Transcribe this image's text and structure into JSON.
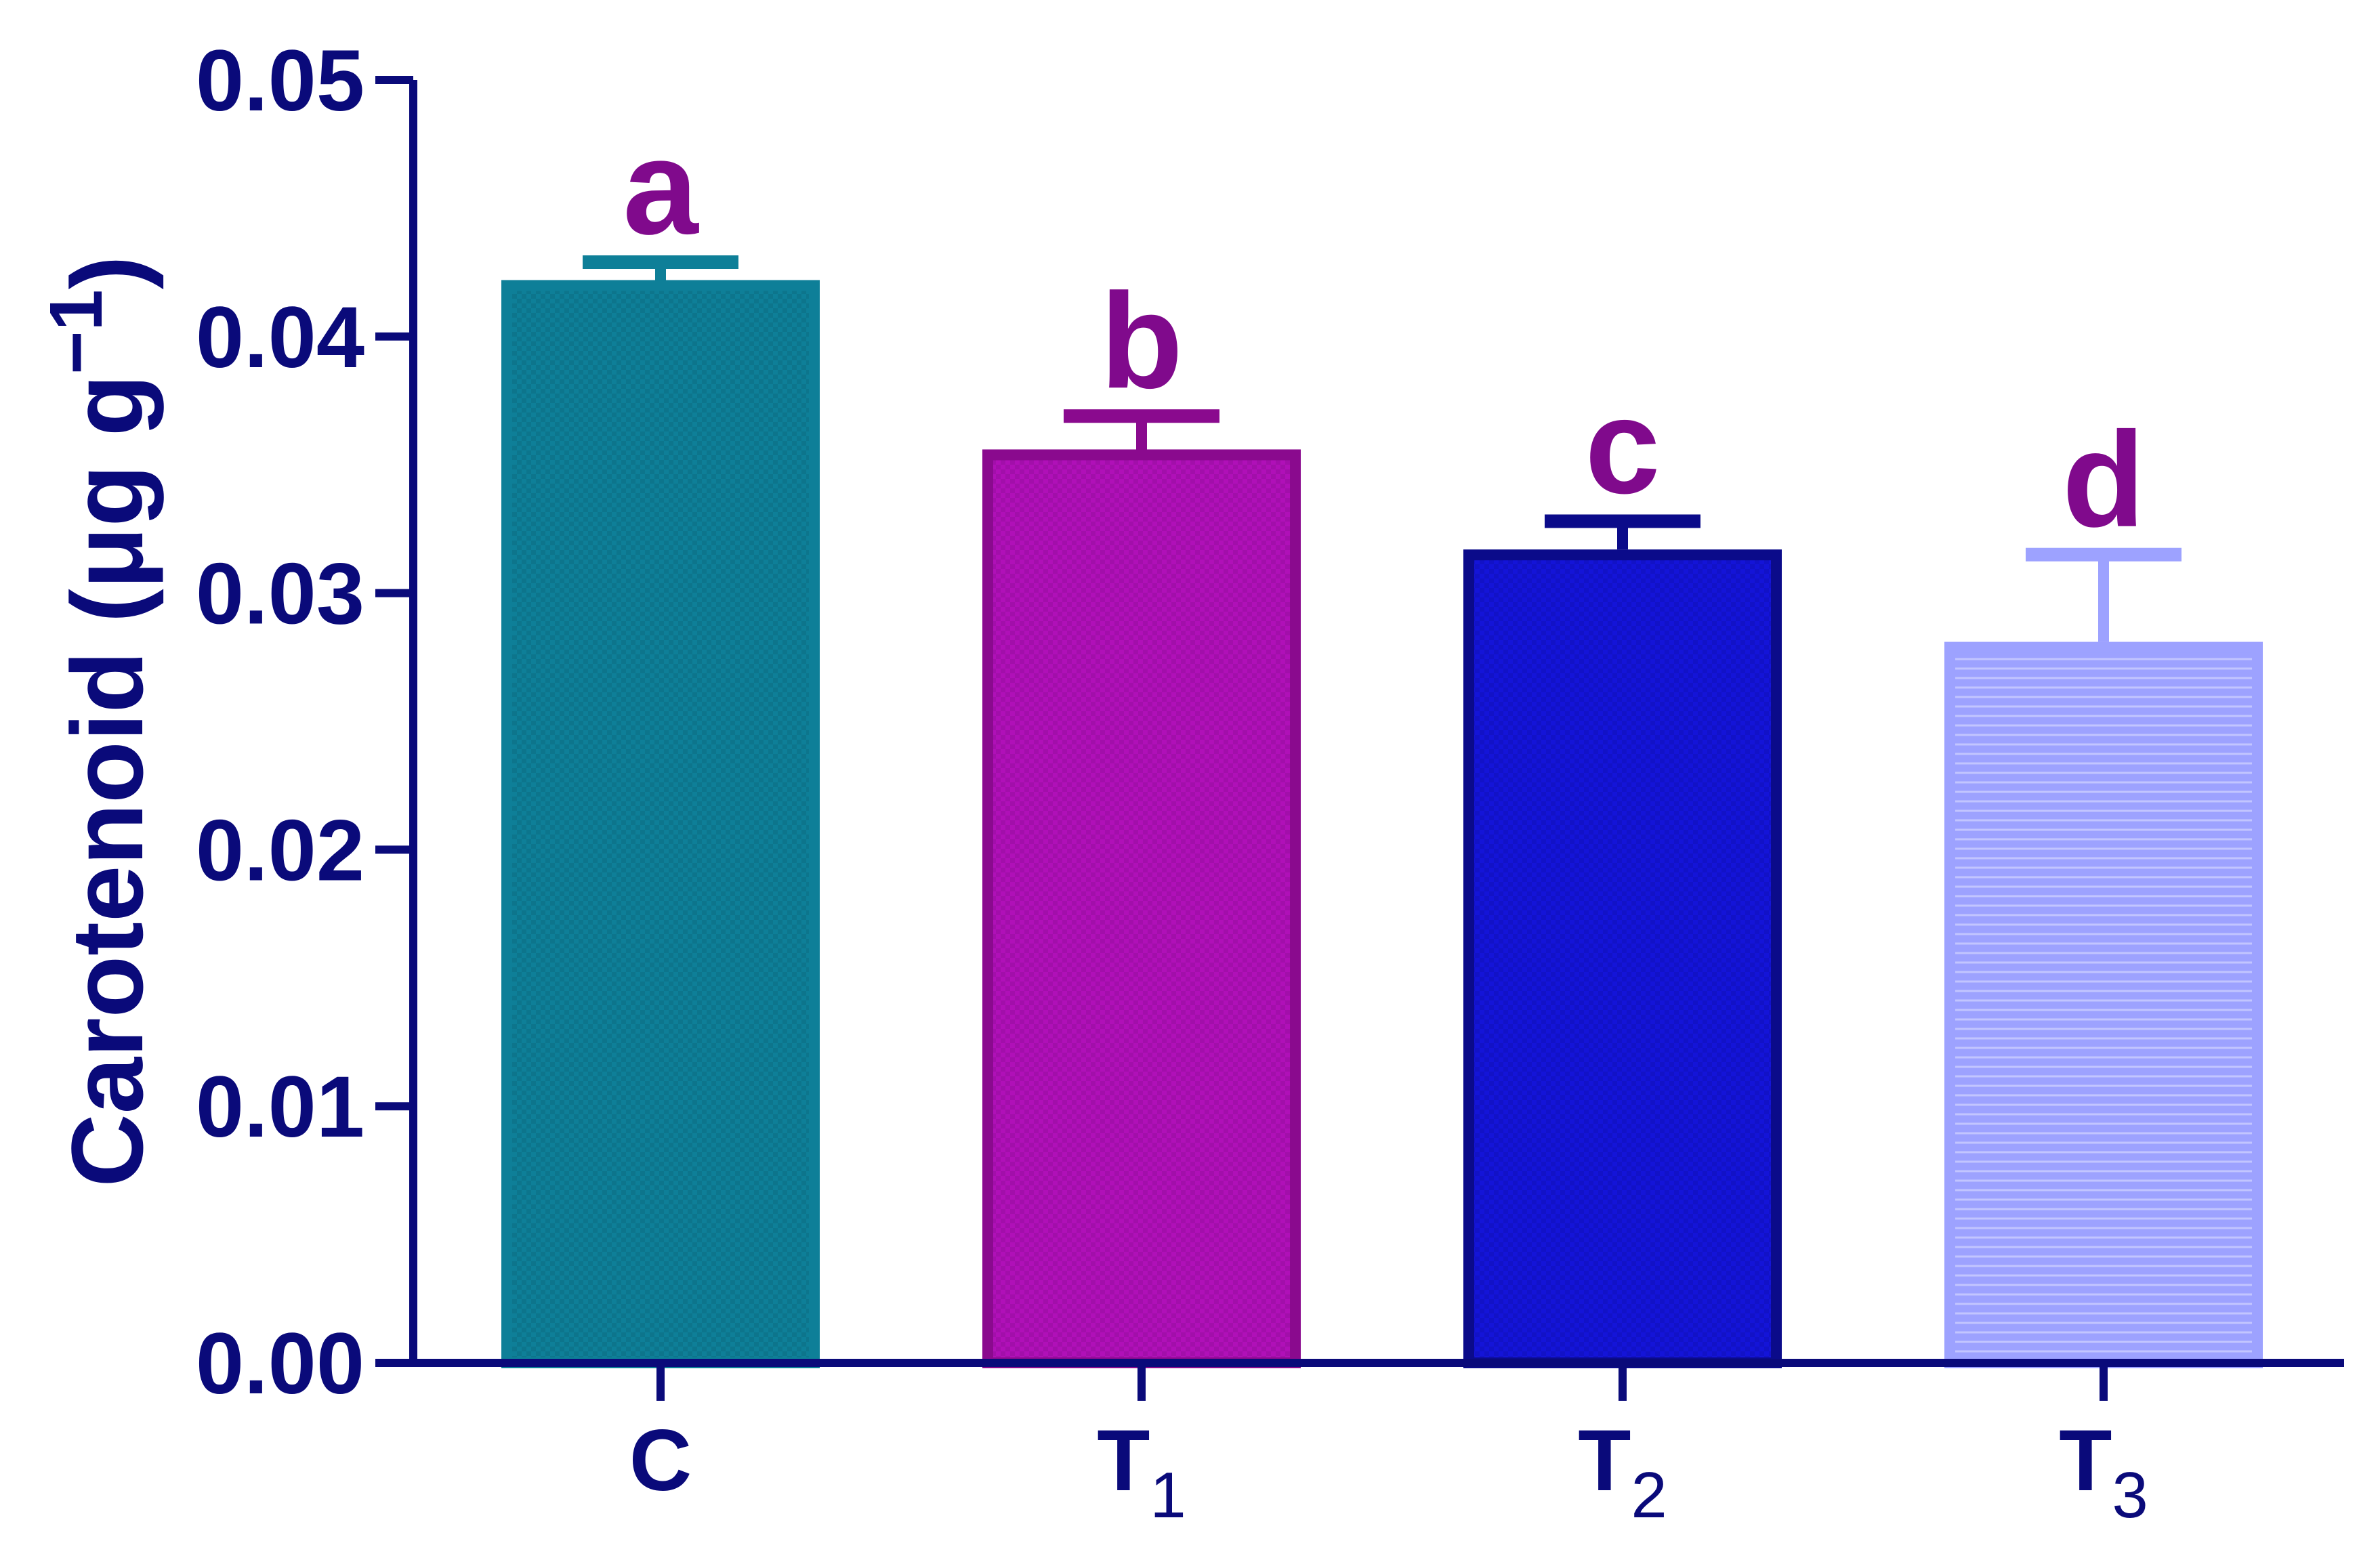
{
  "chart_data": {
    "type": "bar",
    "ylabel": "Carotenoid (μg g",
    "ylabel_superscript": "−1",
    "ylabel_close": ")",
    "ylim": [
      0,
      0.05
    ],
    "yticks": [
      "0.00",
      "0.01",
      "0.02",
      "0.03",
      "0.04",
      "0.05"
    ],
    "ytick_values": [
      0,
      0.01,
      0.02,
      0.03,
      0.04,
      0.05
    ],
    "categories": [
      {
        "base": "C",
        "sub": ""
      },
      {
        "base": "T",
        "sub": "1"
      },
      {
        "base": "T",
        "sub": "2"
      },
      {
        "base": "T",
        "sub": "3"
      }
    ],
    "values": [
      0.0422,
      0.0356,
      0.0317,
      0.0281
    ],
    "errors": [
      0.0007,
      0.0013,
      0.0011,
      0.0034
    ],
    "significance": [
      "a",
      "b",
      "c",
      "d"
    ],
    "bar_fill_colors": [
      "#0e7f98",
      "#b010b8",
      "#1414d8",
      "#9da2ff"
    ],
    "bar_edge_colors": [
      "#0e7f98",
      "#8a0a8e",
      "#0b0b8a",
      "#9da2ff"
    ],
    "axis_color": "#0a0a7a",
    "letter_color": "#800a8c",
    "grid": false,
    "legend": "none"
  }
}
